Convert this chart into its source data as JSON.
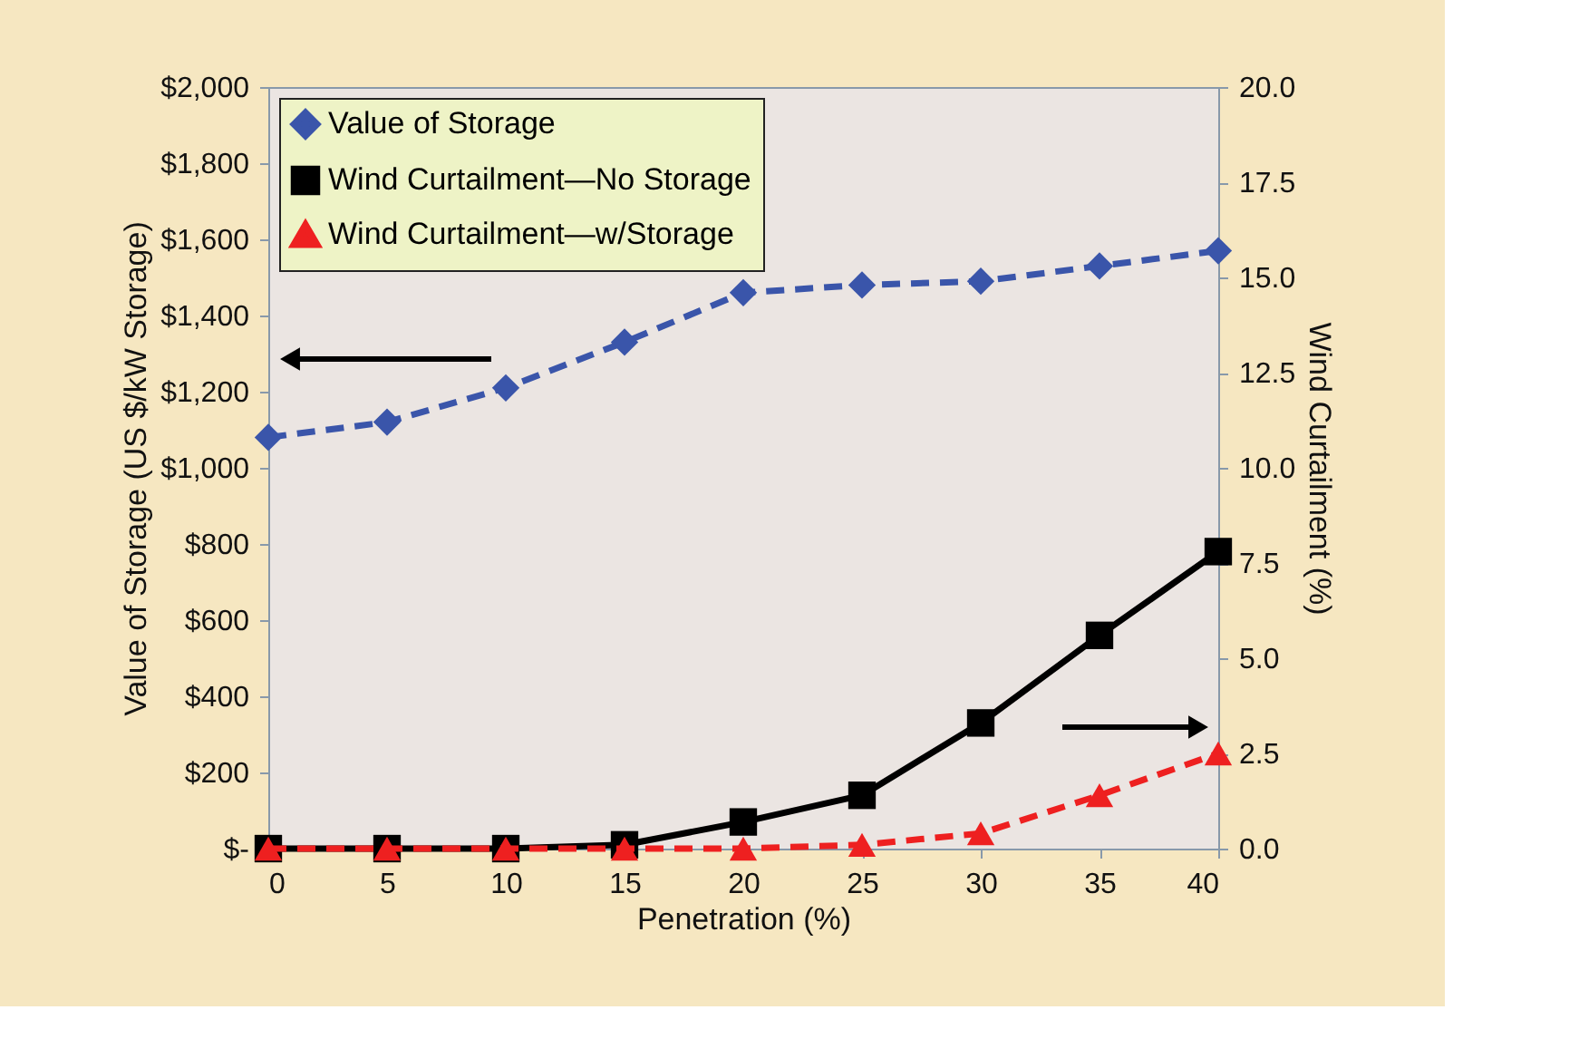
{
  "chart_data": {
    "type": "line",
    "xlabel": "Penetration (%)",
    "ylabel": "Value of Storage (US $/kW Storage)",
    "y2label": "Wind Curtailment (%)",
    "x": [
      0,
      5,
      10,
      15,
      20,
      25,
      30,
      35,
      40
    ],
    "xlim": [
      0,
      40
    ],
    "xticks": [
      0,
      5,
      10,
      15,
      20,
      25,
      30,
      35,
      40
    ],
    "ylim": [
      0,
      2000
    ],
    "yticks": [
      {
        "value": 0,
        "label": "$-"
      },
      {
        "value": 200,
        "label": "$200"
      },
      {
        "value": 400,
        "label": "$400"
      },
      {
        "value": 600,
        "label": "$600"
      },
      {
        "value": 800,
        "label": "$800"
      },
      {
        "value": 1000,
        "label": "$1,000"
      },
      {
        "value": 1200,
        "label": "$1,200"
      },
      {
        "value": 1400,
        "label": "$1,400"
      },
      {
        "value": 1600,
        "label": "$1,600"
      },
      {
        "value": 1800,
        "label": "$1,800"
      },
      {
        "value": 2000,
        "label": "$2,000"
      }
    ],
    "y2lim": [
      0,
      20
    ],
    "y2ticks": [
      {
        "value": 0,
        "label": "0.0"
      },
      2.5,
      {
        "value": 5,
        "label": "5.0"
      },
      7.5,
      {
        "value": 10,
        "label": "10.0"
      },
      12.5,
      {
        "value": 15,
        "label": "15.0"
      },
      17.5,
      {
        "value": 20,
        "label": "20.0"
      }
    ],
    "grid": false,
    "legend": "top left",
    "series": [
      {
        "name": "Value of Storage",
        "color": "#3a55aa",
        "marker": "diamond",
        "line_style": "dashed",
        "values": [
          1080,
          1120,
          1210,
          1330,
          1460,
          1480,
          1490,
          1530,
          1570
        ]
      },
      {
        "name": "Wind Curtailment—No Storage",
        "color": "#000000",
        "marker": "square",
        "line_style": "solid",
        "axis": "y2",
        "values": [
          0,
          0,
          0,
          0.1,
          0.7,
          1.4,
          3.3,
          5.6,
          7.8
        ]
      },
      {
        "name": "Wind Curtailment—w/Storage",
        "color": "#ee2020",
        "marker": "triangle",
        "line_style": "dashed",
        "axis": "y2",
        "values": [
          0,
          0,
          0,
          0,
          0,
          0.1,
          0.4,
          1.4,
          2.5
        ]
      }
    ]
  }
}
